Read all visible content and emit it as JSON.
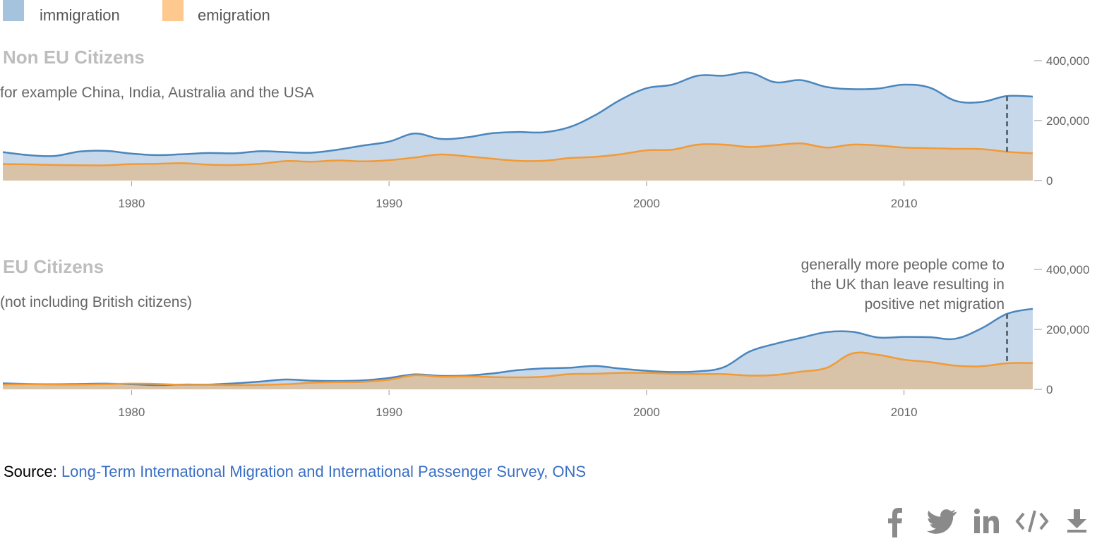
{
  "legend": {
    "items": [
      {
        "label": "immigration",
        "color": "#a6c3de"
      },
      {
        "label": "emigration",
        "color": "#fdc98e"
      }
    ]
  },
  "colors": {
    "immigration_line": "#4a86bd",
    "immigration_fill": "#c6d8ea",
    "emigration_line": "#f29a35",
    "emigration_fill": "#d8c3a8",
    "axis_text": "#666666",
    "title": "#bdbdbd",
    "source_link": "#3a6fc4",
    "icon": "#8a8a8a"
  },
  "chart_data": [
    {
      "type": "area",
      "title": "Non EU Citizens",
      "subtitle": "for example China, India, Australia and the USA",
      "x": [
        1975,
        1976,
        1977,
        1978,
        1979,
        1980,
        1981,
        1982,
        1983,
        1984,
        1985,
        1986,
        1987,
        1988,
        1989,
        1990,
        1991,
        1992,
        1993,
        1994,
        1995,
        1996,
        1997,
        1998,
        1999,
        2000,
        2001,
        2002,
        2003,
        2004,
        2005,
        2006,
        2007,
        2008,
        2009,
        2010,
        2011,
        2012,
        2013,
        2014,
        2015
      ],
      "series": [
        {
          "name": "immigration",
          "values": [
            95000,
            85000,
            82000,
            97000,
            99000,
            90000,
            85000,
            88000,
            92000,
            91000,
            98000,
            95000,
            93000,
            103000,
            117000,
            130000,
            157000,
            139000,
            144000,
            158000,
            162000,
            161000,
            178000,
            218000,
            270000,
            308000,
            320000,
            350000,
            350000,
            360000,
            328000,
            335000,
            312000,
            305000,
            307000,
            320000,
            310000,
            266000,
            262000,
            282000,
            280000
          ]
        },
        {
          "name": "emigration",
          "values": [
            55000,
            54000,
            52000,
            51000,
            51000,
            55000,
            56000,
            58000,
            53000,
            52000,
            56000,
            65000,
            63000,
            67000,
            64000,
            68000,
            77000,
            87000,
            81000,
            73000,
            66000,
            66000,
            75000,
            79000,
            88000,
            101000,
            103000,
            120000,
            120000,
            112000,
            118000,
            124000,
            110000,
            120000,
            117000,
            110000,
            108000,
            106000,
            105000,
            96000,
            91000
          ]
        }
      ],
      "x_ticks": [
        "1980",
        "1990",
        "2000",
        "2010"
      ],
      "x_tick_values": [
        1980,
        1990,
        2000,
        2010
      ],
      "y_ticks": [
        "0",
        "200,000",
        "400,000"
      ],
      "y_tick_values": [
        0,
        200000,
        400000
      ],
      "xlim": [
        1975,
        2015
      ],
      "ylim": [
        0,
        400000
      ],
      "marker_year": 2014,
      "annotation": []
    },
    {
      "type": "area",
      "title": "EU Citizens",
      "subtitle": "(not including British citizens)",
      "x": [
        1975,
        1976,
        1977,
        1978,
        1979,
        1980,
        1981,
        1982,
        1983,
        1984,
        1985,
        1986,
        1987,
        1988,
        1989,
        1990,
        1991,
        1992,
        1993,
        1994,
        1995,
        1996,
        1997,
        1998,
        1999,
        2000,
        2001,
        2002,
        2003,
        2004,
        2005,
        2006,
        2007,
        2008,
        2009,
        2010,
        2011,
        2012,
        2013,
        2014,
        2015
      ],
      "series": [
        {
          "name": "immigration",
          "values": [
            20000,
            18000,
            17000,
            18000,
            19000,
            17000,
            14000,
            16000,
            16000,
            20000,
            26000,
            33000,
            29000,
            28000,
            30000,
            38000,
            50000,
            45000,
            46000,
            53000,
            64000,
            70000,
            72000,
            78000,
            69000,
            62000,
            58000,
            60000,
            74000,
            126000,
            152000,
            172000,
            191000,
            192000,
            173000,
            175000,
            174000,
            169000,
            203000,
            252000,
            269000
          ]
        },
        {
          "name": "emigration",
          "values": [
            16000,
            17000,
            16000,
            16000,
            17000,
            19000,
            18000,
            15000,
            15000,
            14000,
            15000,
            17000,
            22000,
            24000,
            25000,
            32000,
            47000,
            42000,
            43000,
            41000,
            40000,
            42000,
            51000,
            52000,
            55000,
            55000,
            52000,
            51000,
            51000,
            46000,
            48000,
            59000,
            72000,
            120000,
            115000,
            99000,
            91000,
            79000,
            77000,
            87000,
            88000
          ]
        }
      ],
      "x_ticks": [
        "1980",
        "1990",
        "2000",
        "2010"
      ],
      "x_tick_values": [
        1980,
        1990,
        2000,
        2010
      ],
      "y_ticks": [
        "0",
        "200,000",
        "400,000"
      ],
      "y_tick_values": [
        0,
        200000,
        400000
      ],
      "xlim": [
        1975,
        2015
      ],
      "ylim": [
        0,
        400000
      ],
      "marker_year": 2014,
      "annotation": [
        "generally more people come to",
        "the UK than leave resulting in",
        "positive net migration"
      ]
    }
  ],
  "source": {
    "label": "Source: ",
    "link_text": "Long-Term International Migration and International Passenger Survey, ONS"
  },
  "share": {
    "icons": [
      "facebook-icon",
      "twitter-icon",
      "linkedin-icon",
      "embed-code-icon",
      "download-icon"
    ]
  }
}
